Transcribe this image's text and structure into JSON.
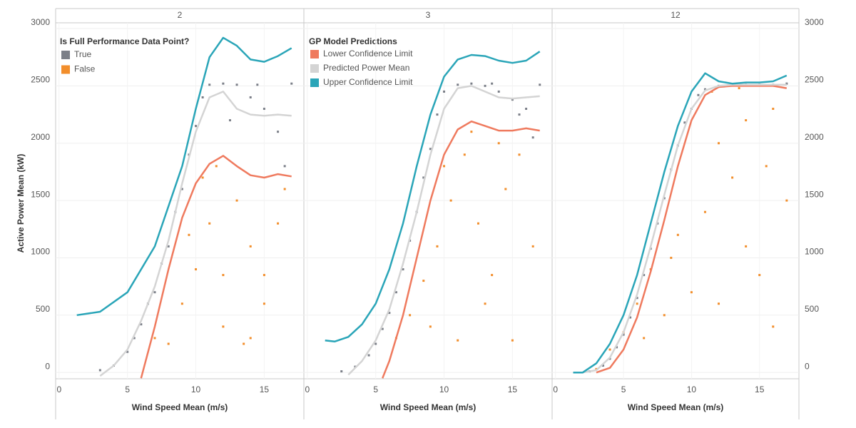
{
  "legend_titles": {
    "points": "Is Full Performance Data Point?",
    "lines": "GP Model Predictions"
  },
  "chart_data": [
    {
      "type": "scatter",
      "title": "2",
      "x_label": "Wind Speed Mean (m/s)",
      "y_label": "Active Power Mean (kW)",
      "xlim": [
        -0.25,
        17.9
      ],
      "ylim": [
        -55,
        3050
      ],
      "xticks": [
        0,
        5,
        10,
        15
      ],
      "yticks": [
        0,
        500,
        1000,
        1500,
        2000,
        2500,
        3000
      ],
      "grid": true,
      "series": [
        {
          "name": "True",
          "mode": "markers",
          "color": "#7b7f88",
          "x": [
            3,
            4,
            5,
            5.5,
            6,
            6.5,
            7,
            7.5,
            8,
            8.5,
            9,
            9.5,
            10,
            10.5,
            11,
            12,
            13,
            14,
            15,
            16,
            17,
            12.5,
            14.5,
            16.5
          ],
          "values": [
            20,
            60,
            180,
            300,
            420,
            600,
            700,
            950,
            1100,
            1400,
            1600,
            1900,
            2150,
            2400,
            2510,
            2520,
            2510,
            2400,
            2300,
            2100,
            2520,
            2200,
            2510,
            1800
          ]
        },
        {
          "name": "False",
          "mode": "markers",
          "color": "#f28e2b",
          "x": [
            7,
            8,
            9,
            10,
            11,
            12,
            13,
            14,
            15,
            16,
            10.5,
            12,
            13.5,
            15,
            16.5,
            9.5,
            11.5,
            14
          ],
          "values": [
            300,
            250,
            600,
            900,
            1300,
            850,
            1500,
            1100,
            850,
            1300,
            1700,
            400,
            250,
            600,
            1600,
            1200,
            1800,
            300
          ]
        },
        {
          "name": "Lower Confidence Limit",
          "mode": "line",
          "color": "#ef7a5e",
          "x": [
            6,
            7,
            8,
            9,
            10,
            11,
            12,
            13,
            14,
            15,
            16,
            17
          ],
          "values": [
            -50,
            400,
            900,
            1350,
            1650,
            1820,
            1890,
            1800,
            1720,
            1700,
            1730,
            1710
          ]
        },
        {
          "name": "Predicted Power Mean",
          "mode": "line",
          "color": "#d4d4d4",
          "x": [
            3,
            4,
            5,
            6,
            7,
            8,
            9,
            10,
            11,
            12,
            13,
            14,
            15,
            16,
            17
          ],
          "values": [
            -30,
            60,
            200,
            450,
            750,
            1150,
            1650,
            2100,
            2400,
            2450,
            2300,
            2250,
            2240,
            2250,
            2240
          ]
        },
        {
          "name": "Upper Confidence Limit",
          "mode": "line",
          "color": "#2aa5b8",
          "x": [
            1.3,
            3,
            5,
            7,
            9,
            10,
            11,
            12,
            13,
            14,
            15,
            16,
            17
          ],
          "values": [
            500,
            530,
            700,
            1100,
            1800,
            2300,
            2750,
            2920,
            2850,
            2730,
            2710,
            2760,
            2830
          ]
        }
      ]
    },
    {
      "type": "scatter",
      "title": "3",
      "x_label": "Wind Speed Mean (m/s)",
      "xlim": [
        -0.25,
        17.9
      ],
      "ylim": [
        -55,
        3050
      ],
      "xticks": [
        0,
        5,
        10,
        15
      ],
      "yticks": [
        0,
        500,
        1000,
        1500,
        2000,
        2500,
        3000
      ],
      "grid": true,
      "series": [
        {
          "name": "True",
          "mode": "markers",
          "color": "#7b7f88",
          "x": [
            2.5,
            3.5,
            4.5,
            5,
            5.5,
            6,
            6.5,
            7,
            7.5,
            8,
            8.5,
            9,
            9.5,
            10,
            11,
            12,
            13,
            14,
            15,
            16,
            17,
            13.5,
            15.5,
            16.5
          ],
          "values": [
            10,
            50,
            150,
            250,
            380,
            520,
            700,
            900,
            1150,
            1400,
            1700,
            1950,
            2250,
            2450,
            2510,
            2520,
            2500,
            2450,
            2380,
            2300,
            2510,
            2520,
            2250,
            2050
          ]
        },
        {
          "name": "False",
          "mode": "markers",
          "color": "#f28e2b",
          "x": [
            6.5,
            7.5,
            8.5,
            9.5,
            10.5,
            11.5,
            12.5,
            13.5,
            14.5,
            15.5,
            16.5,
            9,
            11,
            13,
            15,
            10,
            12,
            14
          ],
          "values": [
            300,
            500,
            800,
            1100,
            1500,
            1900,
            1300,
            850,
            1600,
            1900,
            1100,
            400,
            280,
            600,
            280,
            1800,
            2100,
            2000
          ]
        },
        {
          "name": "Lower Confidence Limit",
          "mode": "line",
          "color": "#ef7a5e",
          "x": [
            5.5,
            6,
            7,
            8,
            9,
            10,
            11,
            12,
            13,
            14,
            15,
            16,
            17
          ],
          "values": [
            -50,
            100,
            500,
            1000,
            1500,
            1900,
            2120,
            2190,
            2150,
            2110,
            2110,
            2130,
            2110
          ]
        },
        {
          "name": "Predicted Power Mean",
          "mode": "line",
          "color": "#d4d4d4",
          "x": [
            3,
            4,
            5,
            6,
            7,
            8,
            9,
            10,
            11,
            12,
            13,
            14,
            15,
            16,
            17
          ],
          "values": [
            -20,
            100,
            280,
            550,
            950,
            1400,
            1900,
            2300,
            2480,
            2500,
            2450,
            2400,
            2390,
            2400,
            2410
          ]
        },
        {
          "name": "Upper Confidence Limit",
          "mode": "line",
          "color": "#2aa5b8",
          "x": [
            1.3,
            2,
            3,
            4,
            5,
            6,
            7,
            8,
            9,
            10,
            11,
            12,
            13,
            14,
            15,
            16,
            17
          ],
          "values": [
            280,
            270,
            310,
            420,
            600,
            900,
            1300,
            1800,
            2250,
            2580,
            2730,
            2770,
            2760,
            2720,
            2700,
            2720,
            2800
          ]
        }
      ]
    },
    {
      "type": "scatter",
      "title": "12",
      "x_label": "Wind Speed Mean (m/s)",
      "xlim": [
        -0.25,
        17.9
      ],
      "ylim": [
        -55,
        3050
      ],
      "xticks": [
        0,
        5,
        10,
        15
      ],
      "yticks": [
        0,
        500,
        1000,
        1500,
        2000,
        2500,
        3000
      ],
      "grid": true,
      "series": [
        {
          "name": "True",
          "mode": "markers",
          "color": "#7b7f88",
          "x": [
            2.5,
            3.5,
            4,
            4.5,
            5,
            5.5,
            6,
            6.5,
            7,
            7.5,
            8,
            8.5,
            9,
            9.5,
            10,
            10.5,
            11,
            12,
            13,
            14,
            15,
            16,
            17
          ],
          "values": [
            10,
            60,
            120,
            220,
            330,
            480,
            650,
            850,
            1080,
            1300,
            1520,
            1770,
            1980,
            2180,
            2300,
            2420,
            2470,
            2500,
            2510,
            2510,
            2510,
            2510,
            2520
          ]
        },
        {
          "name": "False",
          "mode": "markers",
          "color": "#f28e2b",
          "x": [
            3,
            4,
            5,
            6,
            7,
            8,
            9,
            10,
            11,
            12,
            13,
            14,
            15,
            16,
            17,
            6.5,
            8.5,
            11.5,
            13.5,
            15.5,
            12,
            14,
            16
          ],
          "values": [
            30,
            200,
            350,
            600,
            900,
            500,
            1200,
            700,
            1400,
            2000,
            1700,
            1100,
            850,
            2300,
            1500,
            300,
            1000,
            2450,
            2480,
            1800,
            600,
            2200,
            400
          ]
        },
        {
          "name": "Lower Confidence Limit",
          "mode": "line",
          "color": "#ef7a5e",
          "x": [
            3,
            4,
            5,
            6,
            7,
            8,
            9,
            10,
            11,
            12,
            13,
            14,
            15,
            16,
            17
          ],
          "values": [
            0,
            40,
            200,
            480,
            880,
            1330,
            1800,
            2200,
            2420,
            2490,
            2500,
            2500,
            2500,
            2500,
            2480
          ]
        },
        {
          "name": "Predicted Power Mean",
          "mode": "line",
          "color": "#d4d4d4",
          "x": [
            2,
            3,
            4,
            5,
            6,
            7,
            8,
            9,
            10,
            11,
            12,
            13,
            14,
            15,
            16,
            17
          ],
          "values": [
            0,
            20,
            130,
            350,
            680,
            1100,
            1550,
            1980,
            2300,
            2460,
            2500,
            2510,
            2510,
            2510,
            2510,
            2510
          ]
        },
        {
          "name": "Upper Confidence Limit",
          "mode": "line",
          "color": "#2aa5b8",
          "x": [
            1.3,
            2,
            3,
            4,
            5,
            6,
            7,
            8,
            9,
            10,
            11,
            12,
            13,
            14,
            15,
            16,
            17
          ],
          "values": [
            0,
            0,
            80,
            250,
            500,
            850,
            1300,
            1750,
            2150,
            2450,
            2610,
            2540,
            2520,
            2530,
            2530,
            2540,
            2590
          ]
        }
      ]
    }
  ]
}
